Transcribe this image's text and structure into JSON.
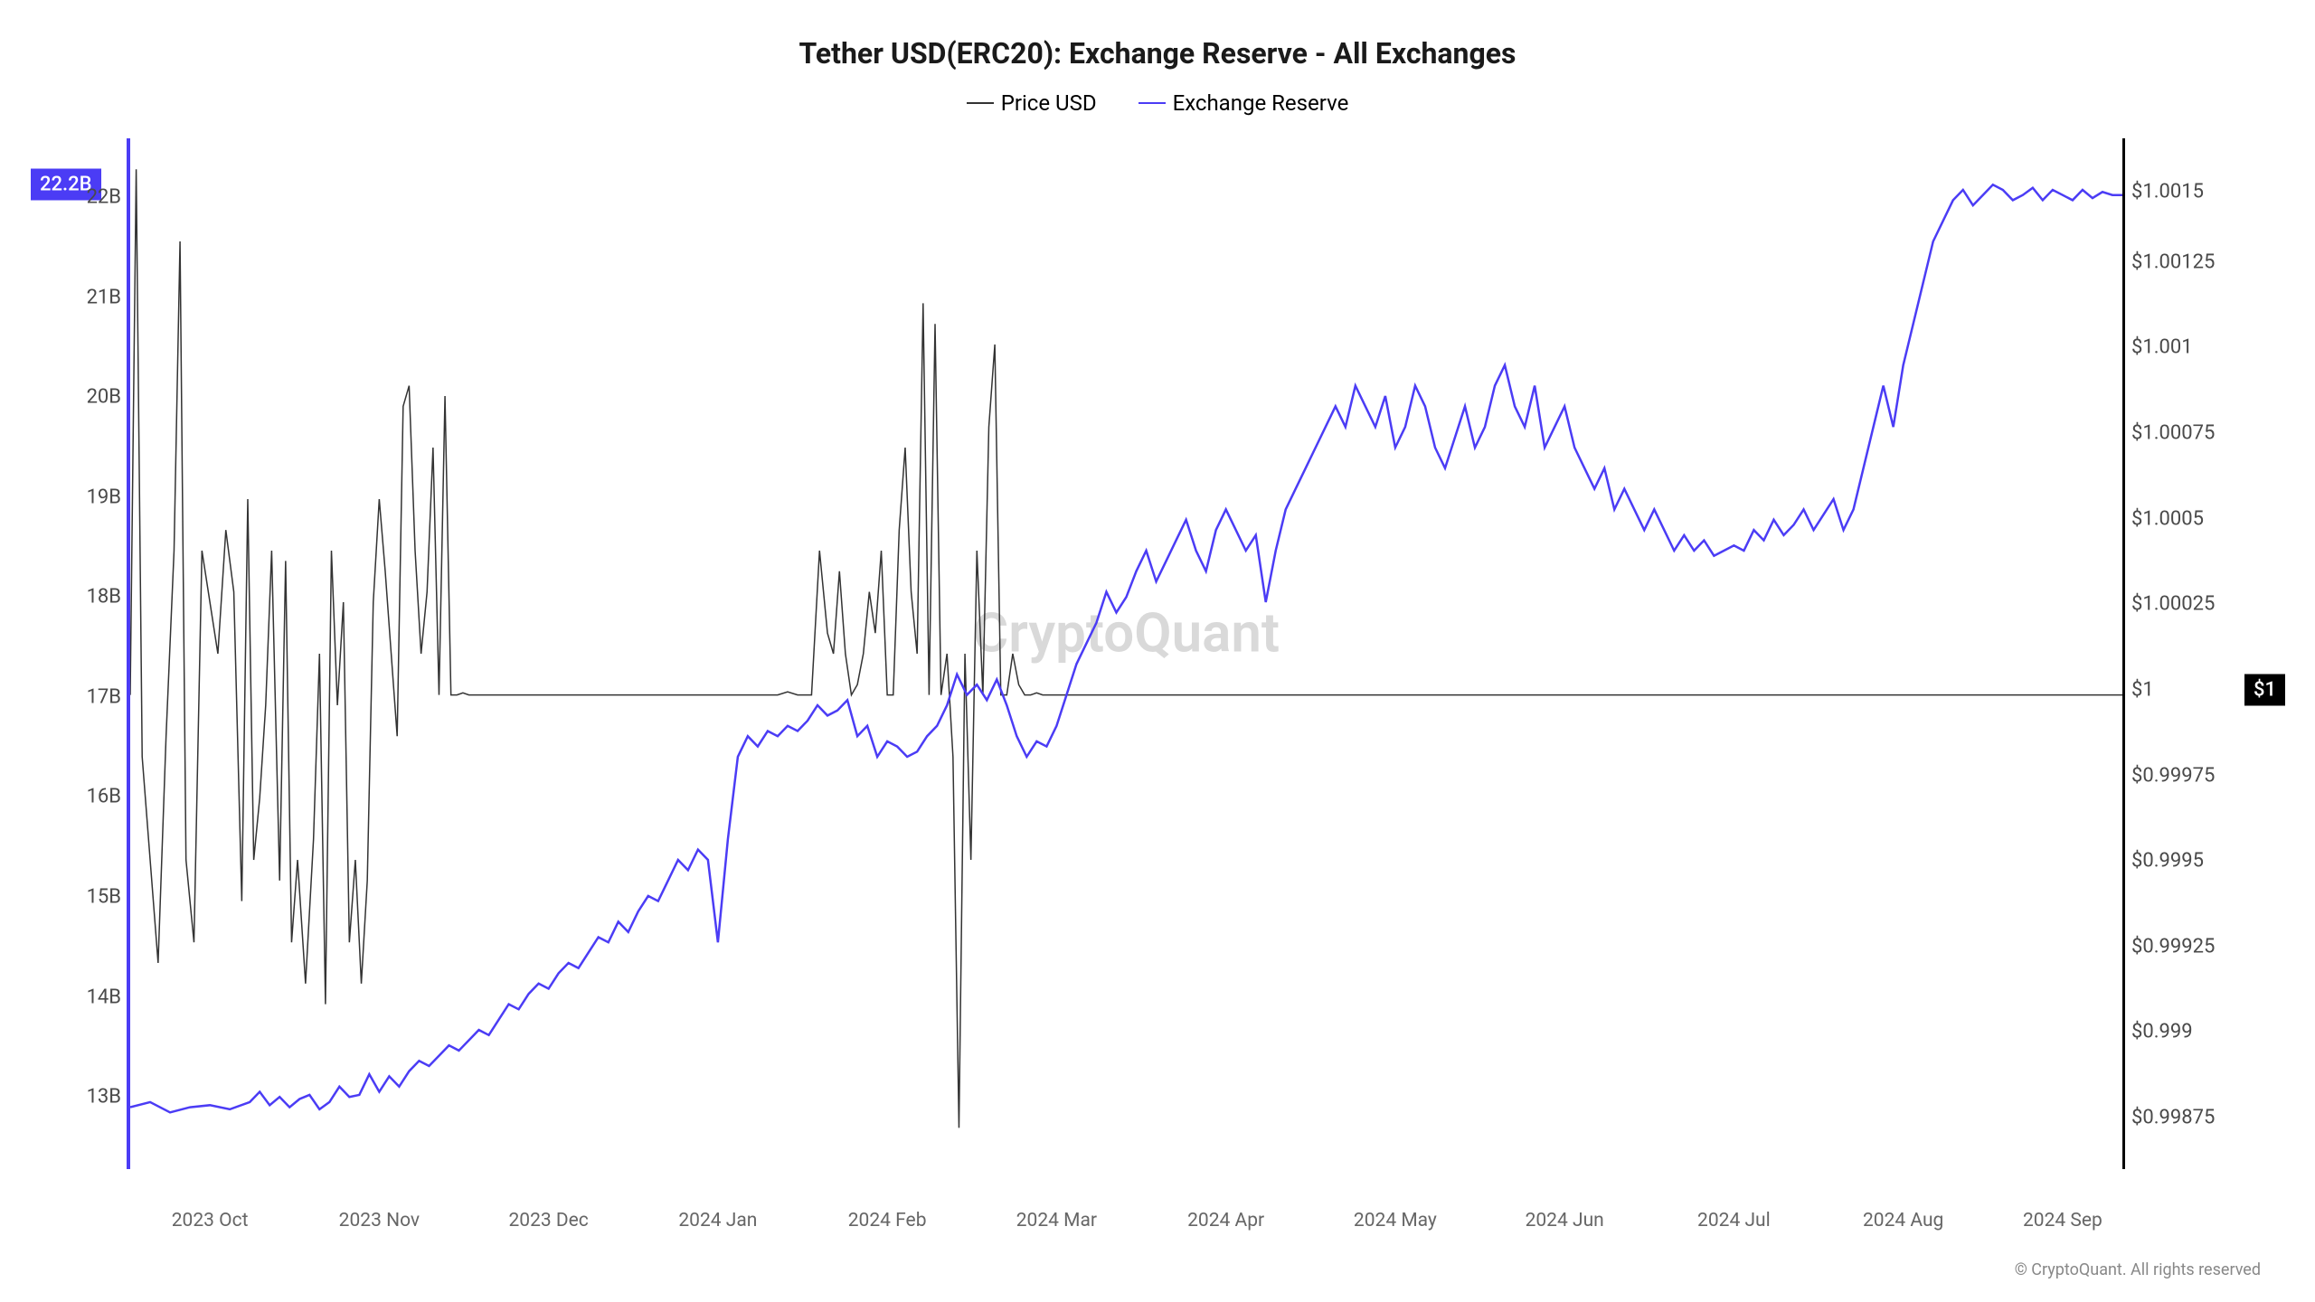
{
  "chart": {
    "type": "line-dual-axis",
    "title": "Tether USD(ERC20): Exchange Reserve - All Exchanges",
    "title_fontsize": 32,
    "title_weight": 700,
    "title_color": "#1a1a1a",
    "background_color": "#ffffff",
    "watermark": "CryptoQuant",
    "watermark_color": "#d9d9d9",
    "watermark_fontsize": 60,
    "legend": [
      {
        "label": "Price USD",
        "color": "#333333"
      },
      {
        "label": "Exchange Reserve",
        "color": "#4b3cf5"
      }
    ],
    "legend_fontsize": 24,
    "left_axis": {
      "border_color": "#4b3cf5",
      "ticks": [
        "13B",
        "14B",
        "15B",
        "16B",
        "17B",
        "18B",
        "19B",
        "20B",
        "21B",
        "22B"
      ],
      "tick_positions_pct": [
        93,
        83.3,
        73.6,
        63.9,
        54.2,
        44.5,
        34.8,
        25.1,
        15.4,
        5.7
      ],
      "fontsize": 22,
      "color": "#4a4a4a",
      "badge_value": "22.2B",
      "badge_bg": "#4b3cf5",
      "badge_pos_pct": 4.5
    },
    "right_axis": {
      "ticks": [
        "$0.99875",
        "$0.999",
        "$0.99925",
        "$0.9995",
        "$0.99975",
        "$1",
        "$1.00025",
        "$1.0005",
        "$1.00075",
        "$1.001",
        "$1.00125",
        "$1.0015"
      ],
      "tick_positions_pct": [
        95,
        86.7,
        78.4,
        70.1,
        61.8,
        53.5,
        45.2,
        36.9,
        28.6,
        20.3,
        12,
        5.2
      ],
      "fontsize": 22,
      "color": "#4a4a4a",
      "badge_value": "$1",
      "badge_bg": "#000000",
      "badge_pos_pct": 53.5
    },
    "x_axis": {
      "ticks": [
        "2023 Oct",
        "2023 Nov",
        "2023 Dec",
        "2024 Jan",
        "2024 Feb",
        "2024 Mar",
        "2024 Apr",
        "2024 May",
        "2024 Jun",
        "2024 Jul",
        "2024 Aug",
        "2024 Sep"
      ],
      "tick_positions_pct": [
        4,
        12.5,
        21,
        29.5,
        38,
        46.5,
        55,
        63.5,
        72,
        80.5,
        89,
        97
      ],
      "fontsize": 21,
      "color": "#666666"
    },
    "series_reserve": {
      "color": "#4b3cf5",
      "width": 2.5,
      "points": [
        [
          0,
          94
        ],
        [
          1,
          93.5
        ],
        [
          2,
          94.5
        ],
        [
          3,
          94.0
        ],
        [
          4,
          93.8
        ],
        [
          5,
          94.2
        ],
        [
          6,
          93.5
        ],
        [
          6.5,
          92.5
        ],
        [
          7,
          93.8
        ],
        [
          7.5,
          93.0
        ],
        [
          8,
          94.0
        ],
        [
          8.5,
          93.2
        ],
        [
          9,
          92.8
        ],
        [
          9.5,
          94.2
        ],
        [
          10,
          93.5
        ],
        [
          10.5,
          92.0
        ],
        [
          11,
          93.0
        ],
        [
          11.5,
          92.8
        ],
        [
          12,
          90.8
        ],
        [
          12.5,
          92.5
        ],
        [
          13,
          91.0
        ],
        [
          13.5,
          92.0
        ],
        [
          14,
          90.5
        ],
        [
          14.5,
          89.5
        ],
        [
          15,
          90.0
        ],
        [
          15.5,
          89.0
        ],
        [
          16,
          88.0
        ],
        [
          16.5,
          88.5
        ],
        [
          17,
          87.5
        ],
        [
          17.5,
          86.5
        ],
        [
          18,
          87.0
        ],
        [
          18.5,
          85.5
        ],
        [
          19,
          84.0
        ],
        [
          19.5,
          84.5
        ],
        [
          20,
          83.0
        ],
        [
          20.5,
          82.0
        ],
        [
          21,
          82.5
        ],
        [
          21.5,
          81.0
        ],
        [
          22,
          80.0
        ],
        [
          22.5,
          80.5
        ],
        [
          23,
          79.0
        ],
        [
          23.5,
          77.5
        ],
        [
          24,
          78.0
        ],
        [
          24.5,
          76.0
        ],
        [
          25,
          77.0
        ],
        [
          25.5,
          75.0
        ],
        [
          26,
          73.5
        ],
        [
          26.5,
          74.0
        ],
        [
          27,
          72.0
        ],
        [
          27.5,
          70.0
        ],
        [
          28,
          71.0
        ],
        [
          28.5,
          69.0
        ],
        [
          29,
          70.0
        ],
        [
          29.5,
          78.0
        ],
        [
          30,
          68.0
        ],
        [
          30.5,
          60.0
        ],
        [
          31,
          58.0
        ],
        [
          31.5,
          59.0
        ],
        [
          32,
          57.5
        ],
        [
          32.5,
          58.0
        ],
        [
          33,
          57.0
        ],
        [
          33.5,
          57.5
        ],
        [
          34,
          56.5
        ],
        [
          34.5,
          55.0
        ],
        [
          35,
          56.0
        ],
        [
          35.5,
          55.5
        ],
        [
          36,
          54.5
        ],
        [
          36.5,
          58.0
        ],
        [
          37,
          57.0
        ],
        [
          37.5,
          60.0
        ],
        [
          38,
          58.5
        ],
        [
          38.5,
          59.0
        ],
        [
          39,
          60.0
        ],
        [
          39.5,
          59.5
        ],
        [
          40,
          58.0
        ],
        [
          40.5,
          57.0
        ],
        [
          41,
          55.0
        ],
        [
          41.5,
          52.0
        ],
        [
          42,
          54.0
        ],
        [
          42.5,
          53.0
        ],
        [
          43,
          54.5
        ],
        [
          43.5,
          52.5
        ],
        [
          44,
          55.0
        ],
        [
          44.5,
          58.0
        ],
        [
          45,
          60.0
        ],
        [
          45.5,
          58.5
        ],
        [
          46,
          59.0
        ],
        [
          46.5,
          57.0
        ],
        [
          47,
          54.0
        ],
        [
          47.5,
          51.0
        ],
        [
          48,
          49.0
        ],
        [
          48.5,
          47.0
        ],
        [
          49,
          44.0
        ],
        [
          49.5,
          46.0
        ],
        [
          50,
          44.5
        ],
        [
          50.5,
          42.0
        ],
        [
          51,
          40.0
        ],
        [
          51.5,
          43.0
        ],
        [
          52,
          41.0
        ],
        [
          52.5,
          39.0
        ],
        [
          53,
          37.0
        ],
        [
          53.5,
          40.0
        ],
        [
          54,
          42.0
        ],
        [
          54.5,
          38.0
        ],
        [
          55,
          36.0
        ],
        [
          55.5,
          38.0
        ],
        [
          56,
          40.0
        ],
        [
          56.5,
          38.5
        ],
        [
          57,
          45.0
        ],
        [
          57.5,
          40.0
        ],
        [
          58,
          36.0
        ],
        [
          58.5,
          34.0
        ],
        [
          59,
          32.0
        ],
        [
          59.5,
          30.0
        ],
        [
          60,
          28.0
        ],
        [
          60.5,
          26.0
        ],
        [
          61,
          28.0
        ],
        [
          61.5,
          24.0
        ],
        [
          62,
          26.0
        ],
        [
          62.5,
          28.0
        ],
        [
          63,
          25.0
        ],
        [
          63.5,
          30.0
        ],
        [
          64,
          28.0
        ],
        [
          64.5,
          24.0
        ],
        [
          65,
          26.0
        ],
        [
          65.5,
          30.0
        ],
        [
          66,
          32.0
        ],
        [
          66.5,
          29.0
        ],
        [
          67,
          26.0
        ],
        [
          67.5,
          30.0
        ],
        [
          68,
          28.0
        ],
        [
          68.5,
          24.0
        ],
        [
          69,
          22.0
        ],
        [
          69.5,
          26.0
        ],
        [
          70,
          28.0
        ],
        [
          70.5,
          24.0
        ],
        [
          71,
          30.0
        ],
        [
          71.5,
          28.0
        ],
        [
          72,
          26.0
        ],
        [
          72.5,
          30.0
        ],
        [
          73,
          32.0
        ],
        [
          73.5,
          34.0
        ],
        [
          74,
          32.0
        ],
        [
          74.5,
          36.0
        ],
        [
          75,
          34.0
        ],
        [
          75.5,
          36.0
        ],
        [
          76,
          38.0
        ],
        [
          76.5,
          36.0
        ],
        [
          77,
          38.0
        ],
        [
          77.5,
          40.0
        ],
        [
          78,
          38.5
        ],
        [
          78.5,
          40.0
        ],
        [
          79,
          39.0
        ],
        [
          79.5,
          40.5
        ],
        [
          80,
          40.0
        ],
        [
          80.5,
          39.5
        ],
        [
          81,
          40.0
        ],
        [
          81.5,
          38.0
        ],
        [
          82,
          39.0
        ],
        [
          82.5,
          37.0
        ],
        [
          83,
          38.5
        ],
        [
          83.5,
          37.5
        ],
        [
          84,
          36.0
        ],
        [
          84.5,
          38.0
        ],
        [
          85,
          36.5
        ],
        [
          85.5,
          35.0
        ],
        [
          86,
          38.0
        ],
        [
          86.5,
          36.0
        ],
        [
          87,
          32.0
        ],
        [
          87.5,
          28.0
        ],
        [
          88,
          24.0
        ],
        [
          88.5,
          28.0
        ],
        [
          89,
          22.0
        ],
        [
          89.5,
          18.0
        ],
        [
          90,
          14.0
        ],
        [
          90.5,
          10.0
        ],
        [
          91,
          8.0
        ],
        [
          91.5,
          6.0
        ],
        [
          92,
          5.0
        ],
        [
          92.5,
          6.5
        ],
        [
          93,
          5.5
        ],
        [
          93.5,
          4.5
        ],
        [
          94,
          5.0
        ],
        [
          94.5,
          6.0
        ],
        [
          95,
          5.5
        ],
        [
          95.5,
          4.8
        ],
        [
          96,
          6.0
        ],
        [
          96.5,
          5.0
        ],
        [
          97,
          5.5
        ],
        [
          97.5,
          6.0
        ],
        [
          98,
          5.0
        ],
        [
          98.5,
          5.8
        ],
        [
          99,
          5.2
        ],
        [
          99.5,
          5.5
        ],
        [
          100,
          5.5
        ]
      ]
    },
    "series_price": {
      "color": "#333333",
      "width": 1.5,
      "points": [
        [
          0,
          54
        ],
        [
          0.3,
          3
        ],
        [
          0.6,
          60
        ],
        [
          1,
          70
        ],
        [
          1.4,
          80
        ],
        [
          1.8,
          58
        ],
        [
          2.2,
          40
        ],
        [
          2.5,
          10
        ],
        [
          2.8,
          70
        ],
        [
          3.2,
          78
        ],
        [
          3.6,
          40
        ],
        [
          4,
          45
        ],
        [
          4.4,
          50
        ],
        [
          4.8,
          38
        ],
        [
          5.2,
          44
        ],
        [
          5.6,
          74
        ],
        [
          5.9,
          35
        ],
        [
          6.2,
          70
        ],
        [
          6.5,
          64
        ],
        [
          6.8,
          55
        ],
        [
          7.1,
          40
        ],
        [
          7.5,
          72
        ],
        [
          7.8,
          41
        ],
        [
          8.1,
          78
        ],
        [
          8.4,
          70
        ],
        [
          8.8,
          82
        ],
        [
          9.2,
          68
        ],
        [
          9.5,
          50
        ],
        [
          9.8,
          84
        ],
        [
          10.1,
          40
        ],
        [
          10.4,
          55
        ],
        [
          10.7,
          45
        ],
        [
          11,
          78
        ],
        [
          11.3,
          70
        ],
        [
          11.6,
          82
        ],
        [
          11.9,
          72
        ],
        [
          12.2,
          45
        ],
        [
          12.5,
          35
        ],
        [
          12.8,
          42
        ],
        [
          13.1,
          50
        ],
        [
          13.4,
          58
        ],
        [
          13.7,
          26
        ],
        [
          14,
          24
        ],
        [
          14.3,
          40
        ],
        [
          14.6,
          50
        ],
        [
          14.9,
          44
        ],
        [
          15.2,
          30
        ],
        [
          15.5,
          54
        ],
        [
          15.8,
          25
        ],
        [
          16.1,
          54
        ],
        [
          16.4,
          54
        ],
        [
          16.7,
          53.8
        ],
        [
          17,
          54
        ],
        [
          32.5,
          54
        ],
        [
          33,
          53.7
        ],
        [
          33.5,
          54
        ],
        [
          34.2,
          54
        ],
        [
          34.6,
          40
        ],
        [
          35,
          48
        ],
        [
          35.3,
          50
        ],
        [
          35.6,
          42
        ],
        [
          35.9,
          50
        ],
        [
          36.2,
          54
        ],
        [
          36.5,
          53
        ],
        [
          36.8,
          50
        ],
        [
          37.1,
          44
        ],
        [
          37.4,
          48
        ],
        [
          37.7,
          40
        ],
        [
          38,
          54
        ],
        [
          38.3,
          54
        ],
        [
          38.6,
          38
        ],
        [
          38.9,
          30
        ],
        [
          39.2,
          44
        ],
        [
          39.5,
          50
        ],
        [
          39.8,
          16
        ],
        [
          40.1,
          54
        ],
        [
          40.4,
          18
        ],
        [
          40.7,
          54
        ],
        [
          41,
          50
        ],
        [
          41.3,
          60
        ],
        [
          41.6,
          96
        ],
        [
          41.9,
          50
        ],
        [
          42.2,
          70
        ],
        [
          42.5,
          40
        ],
        [
          42.8,
          54
        ],
        [
          43.1,
          28
        ],
        [
          43.4,
          20
        ],
        [
          43.7,
          54
        ],
        [
          44,
          54
        ],
        [
          44.3,
          50
        ],
        [
          44.6,
          53
        ],
        [
          44.9,
          54
        ],
        [
          45.2,
          54
        ],
        [
          45.5,
          53.8
        ],
        [
          45.8,
          54
        ],
        [
          100,
          54
        ]
      ]
    },
    "copyright": "© CryptoQuant. All rights reserved",
    "copyright_fontsize": 18,
    "copyright_color": "#888888"
  }
}
